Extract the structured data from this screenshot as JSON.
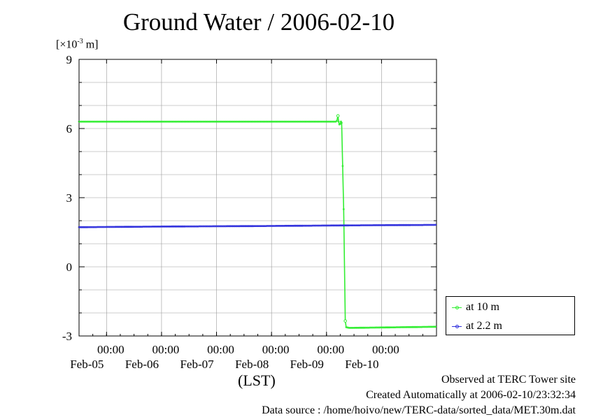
{
  "chart_data": {
    "type": "line",
    "title": "Ground Water / 2006-02-10",
    "ylabel_unit": "[×10-3 m]",
    "unit_prefix": "[×10",
    "unit_exp": "-3",
    "unit_suffix": " m]",
    "xlabel": "(LST)",
    "ylim": [
      -3,
      9
    ],
    "yticks": [
      "9",
      "6",
      "3",
      "0",
      "-3"
    ],
    "ytick_values": [
      9,
      6,
      3,
      0,
      -3
    ],
    "xlim": [
      "2006-02-04 12:00",
      "2006-02-10 24:00"
    ],
    "xticks": [
      {
        "time": "00:00",
        "date": "Feb-05"
      },
      {
        "time": "00:00",
        "date": "Feb-06"
      },
      {
        "time": "00:00",
        "date": "Feb-07"
      },
      {
        "time": "00:00",
        "date": "Feb-08"
      },
      {
        "time": "00:00",
        "date": "Feb-09"
      },
      {
        "time": "00:00",
        "date": "Feb-10"
      }
    ],
    "xtick_hours": [
      12,
      36,
      60,
      84,
      108,
      132
    ],
    "x_range_hours": [
      0,
      156
    ],
    "grid": true,
    "legend_position": "bottom-right, outside plot",
    "series": [
      {
        "name": "at 10 m",
        "color": "#33ee33",
        "points_hours": [
          [
            0,
            6.3
          ],
          [
            60,
            6.3
          ],
          [
            112,
            6.3
          ],
          [
            112.5,
            6.33
          ],
          [
            113,
            6.55
          ],
          [
            113.3,
            6.3
          ],
          [
            113.6,
            6.18
          ],
          [
            114,
            6.2
          ],
          [
            114.3,
            6.3
          ],
          [
            114.6,
            6.25
          ],
          [
            115.5,
            2.5
          ],
          [
            116.2,
            -2.35
          ],
          [
            116.6,
            -2.62
          ],
          [
            118,
            -2.65
          ],
          [
            140,
            -2.62
          ],
          [
            156,
            -2.6
          ]
        ]
      },
      {
        "name": "at 2.2 m",
        "color": "#3333dd",
        "points_hours": [
          [
            0,
            1.72
          ],
          [
            40,
            1.75
          ],
          [
            80,
            1.77
          ],
          [
            120,
            1.8
          ],
          [
            156,
            1.82
          ]
        ]
      }
    ]
  },
  "footer": {
    "observed": "Observed at TERC Tower site",
    "created": "Created Automatically at 2006-02-10/23:32:34",
    "source": "Data source : /home/hoivo/new/TERC-data/sorted_data/MET.30m.dat"
  }
}
